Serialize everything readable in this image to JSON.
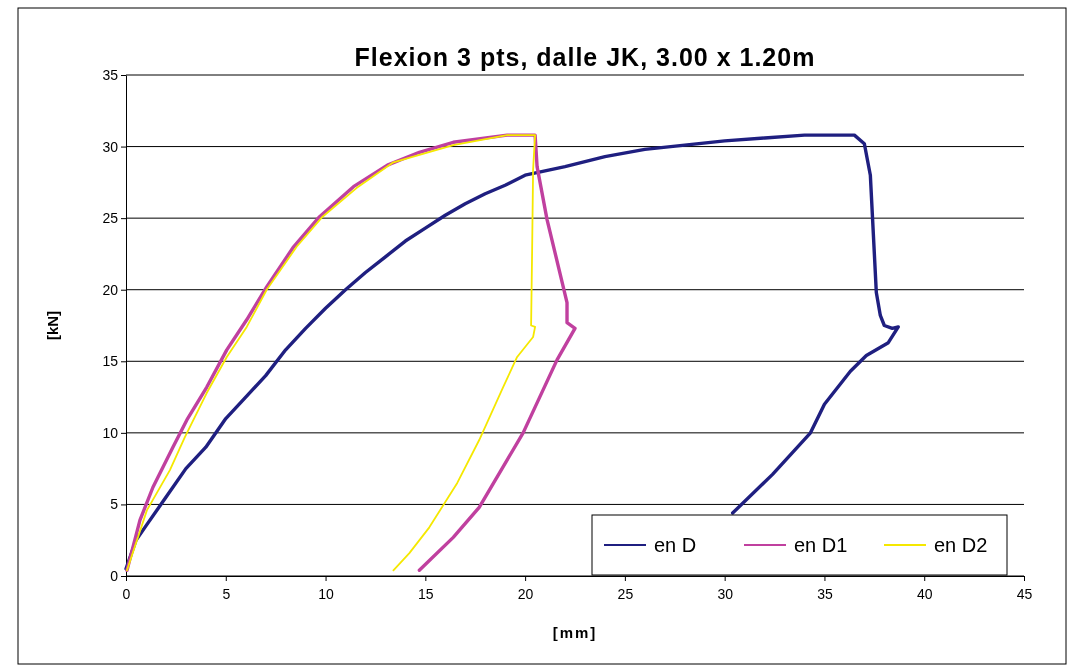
{
  "chart_data": {
    "type": "line",
    "title": "Flexion 3 pts, dalle JK, 3.00 x 1.20m",
    "xlabel": "[mm]",
    "ylabel": "[kN]",
    "xlim": [
      0,
      45
    ],
    "xticks": [
      0,
      5,
      10,
      15,
      20,
      25,
      30,
      35,
      40,
      45
    ],
    "ylim": [
      0,
      35
    ],
    "yticks": [
      0,
      5,
      10,
      15,
      20,
      25,
      30,
      35
    ],
    "grid": "y",
    "legend": "bottom right",
    "marker": "none",
    "line_style": "solid",
    "series": [
      {
        "name": "en D",
        "color": "#1f1f80",
        "x": [
          0,
          0.5,
          1,
          2,
          3,
          4,
          5,
          6,
          7,
          8,
          9,
          10,
          11,
          12,
          13,
          14,
          15,
          16,
          17,
          18,
          19,
          20,
          22,
          24,
          26,
          28,
          30,
          32,
          34,
          36.5,
          37,
          37.3,
          37.6,
          37.8,
          38,
          38.4,
          38.7,
          38.2,
          37.1,
          36.3,
          35,
          34.3,
          32.4,
          30.4
        ],
        "values": [
          0.5,
          2.5,
          3.5,
          5.5,
          7.5,
          9,
          11,
          12.5,
          14,
          15.8,
          17.3,
          18.7,
          20,
          21.2,
          22.3,
          23.4,
          24.3,
          25.2,
          26,
          26.7,
          27.3,
          28,
          28.6,
          29.3,
          29.8,
          30.1,
          30.4,
          30.6,
          30.8,
          30.8,
          30.2,
          28,
          19.8,
          18.2,
          17.5,
          17.3,
          17.4,
          16.3,
          15.4,
          14.3,
          12,
          10,
          7.1,
          4.4
        ]
      },
      {
        "name": "en D1",
        "color": "#c0409f",
        "x": [
          0.05,
          0.7,
          1.35,
          2.35,
          3.05,
          4.05,
          5.05,
          6.05,
          7.05,
          8.4,
          9.7,
          11.4,
          13.1,
          14.7,
          16.4,
          19.1,
          20.5,
          20.6,
          21.1,
          22.1,
          22.1,
          22.5,
          21.6,
          19.9,
          17.7,
          16.4,
          14.7
        ],
        "values": [
          0.4,
          3.9,
          6.2,
          9,
          10.9,
          13.2,
          15.8,
          17.9,
          20.2,
          23,
          25.1,
          27.2,
          28.7,
          29.6,
          30.3,
          30.8,
          30.8,
          28.6,
          24.9,
          19.1,
          17.7,
          17.3,
          15.1,
          10,
          4.8,
          2.7,
          0.4
        ]
      },
      {
        "name": "en D2",
        "color": "#f5e800",
        "x": [
          0.05,
          1.05,
          2.2,
          2.95,
          4.05,
          5.05,
          6.05,
          7.05,
          8.55,
          9.85,
          11.55,
          13.4,
          16.4,
          19.1,
          20.5,
          20.4,
          20.35,
          20.3,
          20.5,
          20.4,
          19.6,
          18.9,
          17.7,
          16.6,
          15.2,
          14.2,
          13.4
        ],
        "values": [
          0.4,
          4.6,
          7.4,
          9.7,
          12.8,
          15.3,
          17.4,
          20,
          23,
          25.1,
          27.1,
          28.9,
          30.1,
          30.8,
          30.8,
          28.4,
          22.6,
          17.5,
          17.4,
          16.7,
          15.3,
          13.2,
          9.5,
          6.5,
          3.4,
          1.6,
          0.4
        ]
      }
    ]
  }
}
